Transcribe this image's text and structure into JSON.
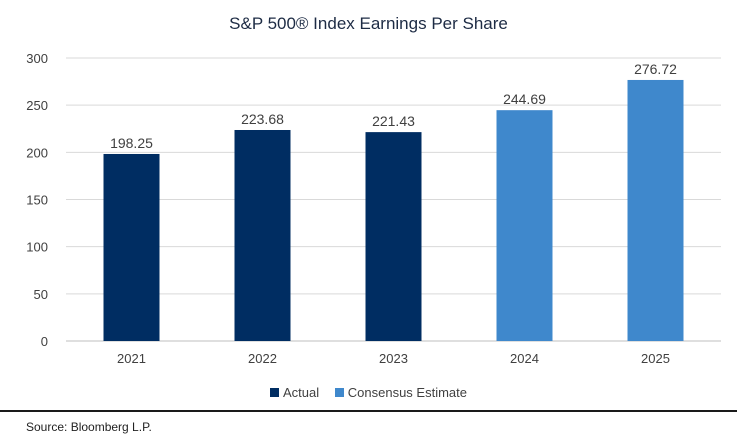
{
  "chart_data": {
    "type": "bar",
    "title": "S&P 500® Index Earnings Per Share",
    "categories": [
      "2021",
      "2022",
      "2023",
      "2024",
      "2025"
    ],
    "values": [
      198.25,
      223.68,
      221.43,
      244.69,
      276.72
    ],
    "value_labels": [
      "198.25",
      "223.68",
      "221.43",
      "244.69",
      "276.72"
    ],
    "series_by_bar": [
      0,
      0,
      0,
      1,
      1
    ],
    "series": [
      {
        "name": "Actual",
        "color": "#002d62"
      },
      {
        "name": "Consensus Estimate",
        "color": "#3f88cc"
      }
    ],
    "y_ticks": [
      "0",
      "50",
      "100",
      "150",
      "200",
      "250",
      "300"
    ],
    "ylim": [
      0,
      300
    ],
    "grid": true,
    "legend_position": "bottom"
  },
  "source": "Source: Bloomberg L.P."
}
